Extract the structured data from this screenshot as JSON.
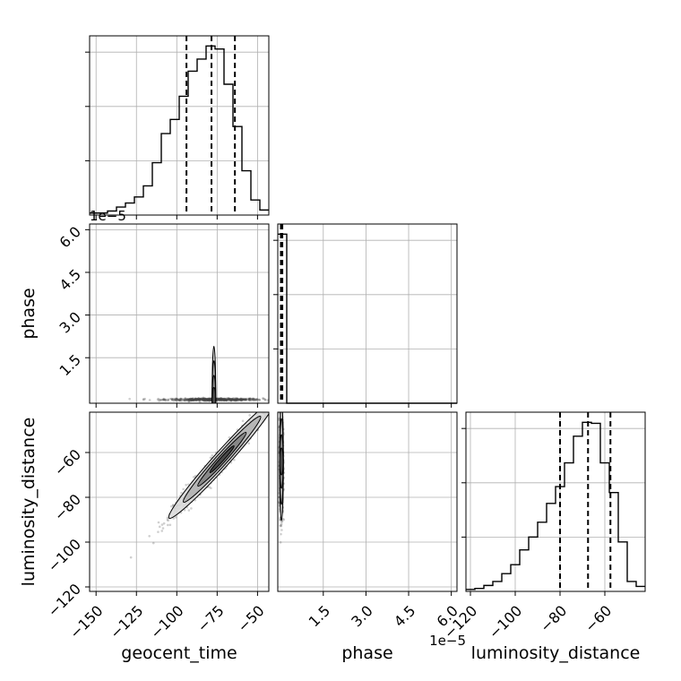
{
  "chart_data": {
    "type": "corner",
    "grid": true,
    "parameters": [
      {
        "name": "geocent_time",
        "range": [
          -154,
          -43
        ],
        "ticks": [
          -150,
          -125,
          -100,
          -75,
          -50
        ],
        "tick_labels": [
          "−150",
          "−125",
          "−100",
          "−75",
          "−50"
        ],
        "quantiles": [
          -94,
          -78.5,
          -64
        ]
      },
      {
        "name": "phase",
        "range": [
          -1e-06,
          6.2e-05
        ],
        "ticks": [
          1.5e-05,
          3e-05,
          4.5e-05,
          6e-05
        ],
        "tick_labels": [
          "1.5",
          "3.0",
          "4.5",
          "6.0"
        ],
        "offset_label": "1e−5",
        "quantiles": [
          1e-07,
          3e-07,
          6e-07
        ]
      },
      {
        "name": "luminosity_distance",
        "range": [
          -122,
          -42
        ],
        "ticks": [
          -120,
          -100,
          -80,
          -60
        ],
        "tick_labels": [
          "−120",
          "−100",
          "−80",
          "−60"
        ],
        "quantiles": [
          -80,
          -67.5,
          -57.5
        ]
      }
    ],
    "histograms": {
      "geocent_time": {
        "edges": [
          -154,
          -148.45,
          -142.9,
          -137.35,
          -131.8,
          -126.25,
          -120.7,
          -115.15,
          -109.6,
          -104.05,
          -98.5,
          -92.95,
          -87.4,
          -81.85,
          -76.3,
          -70.75,
          -65.2,
          -59.65,
          -54.1,
          -48.55,
          -43
        ],
        "counts": [
          2,
          2,
          4,
          8,
          12,
          18,
          29,
          52,
          81,
          95,
          118,
          143,
          155,
          168,
          165,
          130,
          88,
          44,
          15,
          5
        ]
      },
      "phase": {
        "edges": [
          -1e-06,
          2.15e-06,
          5.3e-06,
          8.45e-06,
          1.16e-05,
          1.475e-05,
          1.79e-05,
          2.105e-05,
          2.42e-05,
          2.735e-05,
          3.05e-05,
          3.365e-05,
          3.68e-05,
          3.995e-05,
          4.31e-05,
          4.625e-05,
          4.94e-05,
          5.255e-05,
          5.57e-05,
          5.885e-05,
          6.2e-05
        ],
        "counts": [
          1000,
          0,
          0,
          0,
          0,
          0,
          0,
          0,
          0,
          0,
          0,
          0,
          0,
          0,
          0,
          0,
          0,
          0,
          0,
          0
        ]
      },
      "luminosity_distance": {
        "edges": [
          -122,
          -118,
          -114,
          -110,
          -106,
          -102,
          -98,
          -94,
          -90,
          -86,
          -82,
          -78,
          -74,
          -70,
          -66,
          -62,
          -58,
          -54,
          -50,
          -46,
          -42
        ],
        "counts": [
          2,
          3,
          6,
          10,
          18,
          27,
          42,
          55,
          70,
          89,
          106,
          130,
          157,
          171,
          170,
          130,
          100,
          50,
          10,
          5
        ]
      }
    },
    "scatter_panels": [
      {
        "x": "geocent_time",
        "y": "phase",
        "center": [
          -77,
          3e-07
        ],
        "sigma_x": 15,
        "sigma_y": 2e-07,
        "correlation": 0.0
      },
      {
        "x": "geocent_time",
        "y": "luminosity_distance",
        "center": [
          -72,
          -63
        ],
        "sigma_x": 15,
        "sigma_y": 12,
        "correlation": 0.98
      },
      {
        "x": "phase",
        "y": "luminosity_distance",
        "center": [
          3e-07,
          -64
        ],
        "sigma_x": 3e-07,
        "sigma_y": 12,
        "correlation": 0.0
      }
    ]
  }
}
